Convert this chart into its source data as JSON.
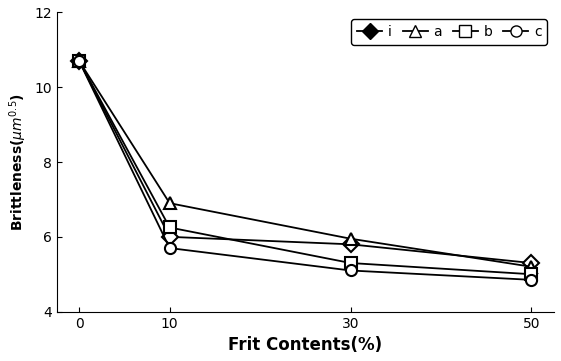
{
  "x": [
    0,
    10,
    30,
    50
  ],
  "series": {
    "i": [
      10.7,
      6.0,
      5.8,
      5.3
    ],
    "a": [
      10.7,
      6.9,
      5.95,
      5.2
    ],
    "b": [
      10.7,
      6.25,
      5.3,
      5.0
    ],
    "c": [
      10.7,
      5.7,
      5.1,
      4.85
    ]
  },
  "markers": {
    "i": "D",
    "a": "^",
    "b": "s",
    "c": "o"
  },
  "line_color": "#000000",
  "ylim": [
    4,
    12
  ],
  "yticks": [
    4,
    6,
    8,
    10,
    12
  ],
  "xticks": [
    0,
    10,
    30,
    50
  ],
  "xlabel": "Frit Contents(%)",
  "marker_size": 8,
  "linewidth": 1.3
}
